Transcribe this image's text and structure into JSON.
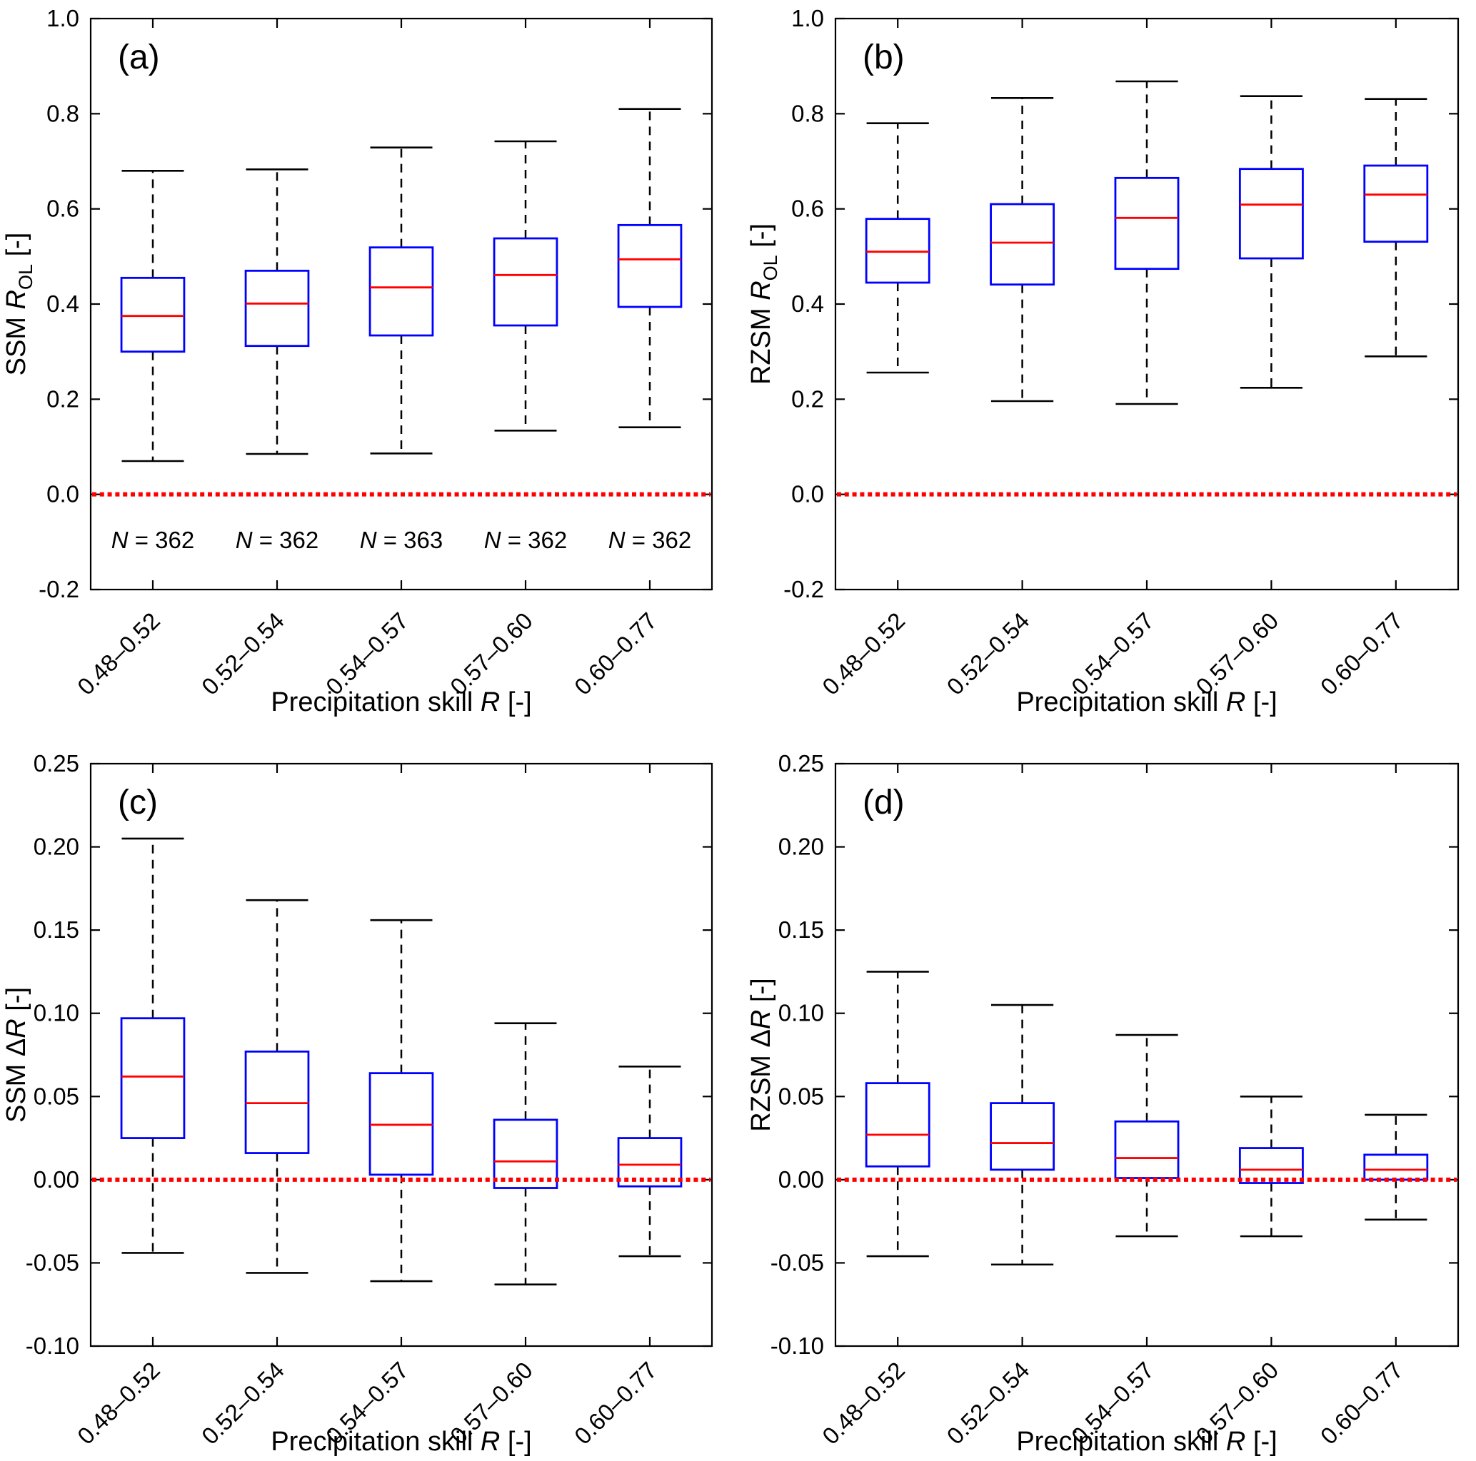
{
  "figure": {
    "background": "#ffffff",
    "colors": {
      "box_stroke": "#0000ff",
      "median_line": "#ff0000",
      "whisker": "#000000",
      "whisker_cap": "#000000",
      "zero_reference_line": "#ff0000",
      "axis": "#000000",
      "text": "#000000"
    }
  },
  "chart_data": [
    {
      "id": "a",
      "type": "boxplot",
      "panel_label": "(a)",
      "ylabel": "SSM R_OL [-]",
      "xlabel": "Precipitation skill R [-]",
      "ylabel_parts": [
        {
          "t": "SSM "
        },
        {
          "t": "R",
          "style": "italic"
        },
        {
          "t": "OL",
          "style": "sub"
        },
        {
          "t": " [-]"
        }
      ],
      "xlabel_parts": [
        {
          "t": "Precipitation skill "
        },
        {
          "t": "R",
          "style": "italic"
        },
        {
          "t": " [-]"
        }
      ],
      "categories": [
        "0.48–0.52",
        "0.52–0.54",
        "0.54–0.57",
        "0.57–0.60",
        "0.60–0.77"
      ],
      "ylim": [
        -0.2,
        1.0
      ],
      "ytick_values": [
        1.0,
        0.8,
        0.6,
        0.4,
        0.2,
        0.0,
        -0.2
      ],
      "ytick_labels": [
        "1.0",
        "0.8",
        "0.6",
        "0.4",
        "0.2",
        "0.0",
        "-0.2"
      ],
      "grid": false,
      "legend": null,
      "zero_line_y": 0.0,
      "boxes": [
        {
          "whisker_low": 0.07,
          "q1": 0.3,
          "median": 0.375,
          "q3": 0.455,
          "whisker_high": 0.68,
          "n": 362
        },
        {
          "whisker_low": 0.085,
          "q1": 0.312,
          "median": 0.401,
          "q3": 0.47,
          "whisker_high": 0.683,
          "n": 362
        },
        {
          "whisker_low": 0.086,
          "q1": 0.334,
          "median": 0.435,
          "q3": 0.519,
          "whisker_high": 0.729,
          "n": 363
        },
        {
          "whisker_low": 0.134,
          "q1": 0.355,
          "median": 0.461,
          "q3": 0.538,
          "whisker_high": 0.742,
          "n": 362
        },
        {
          "whisker_low": 0.141,
          "q1": 0.394,
          "median": 0.494,
          "q3": 0.566,
          "whisker_high": 0.81,
          "n": 362
        }
      ],
      "sample_annotations": {
        "y": -0.095,
        "items": [
          [
            {
              "t": "N",
              "style": "italic"
            },
            {
              "t": " = 362"
            }
          ],
          [
            {
              "t": "N",
              "style": "italic"
            },
            {
              "t": " = 362"
            }
          ],
          [
            {
              "t": "N",
              "style": "italic"
            },
            {
              "t": " = 363"
            }
          ],
          [
            {
              "t": "N",
              "style": "italic"
            },
            {
              "t": " = 362"
            }
          ],
          [
            {
              "t": "N",
              "style": "italic"
            },
            {
              "t": " = 362"
            }
          ]
        ]
      }
    },
    {
      "id": "b",
      "type": "boxplot",
      "panel_label": "(b)",
      "ylabel": "RZSM R_OL [-]",
      "xlabel": "Precipitation skill R [-]",
      "ylabel_parts": [
        {
          "t": "RZSM "
        },
        {
          "t": "R",
          "style": "italic"
        },
        {
          "t": "OL",
          "style": "sub"
        },
        {
          "t": " [-]"
        }
      ],
      "xlabel_parts": [
        {
          "t": "Precipitation skill "
        },
        {
          "t": "R",
          "style": "italic"
        },
        {
          "t": " [-]"
        }
      ],
      "categories": [
        "0.48–0.52",
        "0.52–0.54",
        "0.54–0.57",
        "0.57–0.60",
        "0.60–0.77"
      ],
      "ylim": [
        -0.2,
        1.0
      ],
      "ytick_values": [
        1.0,
        0.8,
        0.6,
        0.4,
        0.2,
        0.0,
        -0.2
      ],
      "ytick_labels": [
        "1.0",
        "0.8",
        "0.6",
        "0.4",
        "0.2",
        "0.0",
        "-0.2"
      ],
      "grid": false,
      "legend": null,
      "zero_line_y": 0.0,
      "boxes": [
        {
          "whisker_low": 0.256,
          "q1": 0.445,
          "median": 0.51,
          "q3": 0.579,
          "whisker_high": 0.78
        },
        {
          "whisker_low": 0.196,
          "q1": 0.441,
          "median": 0.529,
          "q3": 0.61,
          "whisker_high": 0.833
        },
        {
          "whisker_low": 0.19,
          "q1": 0.474,
          "median": 0.581,
          "q3": 0.665,
          "whisker_high": 0.868
        },
        {
          "whisker_low": 0.224,
          "q1": 0.496,
          "median": 0.609,
          "q3": 0.684,
          "whisker_high": 0.837
        },
        {
          "whisker_low": 0.29,
          "q1": 0.531,
          "median": 0.63,
          "q3": 0.691,
          "whisker_high": 0.831
        }
      ],
      "sample_annotations": null
    },
    {
      "id": "c",
      "type": "boxplot",
      "panel_label": "(c)",
      "ylabel": "SSM ΔR [-]",
      "xlabel": "Precipitation skill R [-]",
      "ylabel_parts": [
        {
          "t": "SSM Δ"
        },
        {
          "t": "R",
          "style": "italic"
        },
        {
          "t": " [-]"
        }
      ],
      "xlabel_parts": [
        {
          "t": "Precipitation skill "
        },
        {
          "t": "R",
          "style": "italic"
        },
        {
          "t": " [-]"
        }
      ],
      "categories": [
        "0.48–0.52",
        "0.52–0.54",
        "0.54–0.57",
        "0.57–0.60",
        "0.60–0.77"
      ],
      "ylim": [
        -0.1,
        0.25
      ],
      "ytick_values": [
        0.25,
        0.2,
        0.15,
        0.1,
        0.05,
        0.0,
        -0.05,
        -0.1
      ],
      "ytick_labels": [
        "0.25",
        "0.20",
        "0.15",
        "0.10",
        "0.05",
        "0.00",
        "-0.05",
        "-0.10"
      ],
      "grid": false,
      "legend": null,
      "zero_line_y": 0.0,
      "boxes": [
        {
          "whisker_low": -0.044,
          "q1": 0.025,
          "median": 0.062,
          "q3": 0.097,
          "whisker_high": 0.205
        },
        {
          "whisker_low": -0.056,
          "q1": 0.016,
          "median": 0.046,
          "q3": 0.077,
          "whisker_high": 0.168
        },
        {
          "whisker_low": -0.061,
          "q1": 0.003,
          "median": 0.033,
          "q3": 0.064,
          "whisker_high": 0.156
        },
        {
          "whisker_low": -0.063,
          "q1": -0.005,
          "median": 0.011,
          "q3": 0.036,
          "whisker_high": 0.094
        },
        {
          "whisker_low": -0.046,
          "q1": -0.004,
          "median": 0.009,
          "q3": 0.025,
          "whisker_high": 0.068
        }
      ],
      "sample_annotations": null
    },
    {
      "id": "d",
      "type": "boxplot",
      "panel_label": "(d)",
      "ylabel": "RZSM ΔR [-]",
      "xlabel": "Precipitation skill R [-]",
      "ylabel_parts": [
        {
          "t": "RZSM Δ"
        },
        {
          "t": "R",
          "style": "italic"
        },
        {
          "t": " [-]"
        }
      ],
      "xlabel_parts": [
        {
          "t": "Precipitation skill "
        },
        {
          "t": "R",
          "style": "italic"
        },
        {
          "t": " [-]"
        }
      ],
      "categories": [
        "0.48–0.52",
        "0.52–0.54",
        "0.54–0.57",
        "0.57–0.60",
        "0.60–0.77"
      ],
      "ylim": [
        -0.1,
        0.25
      ],
      "ytick_values": [
        0.25,
        0.2,
        0.15,
        0.1,
        0.05,
        0.0,
        -0.05,
        -0.1
      ],
      "ytick_labels": [
        "0.25",
        "0.20",
        "0.15",
        "0.10",
        "0.05",
        "0.00",
        "-0.05",
        "-0.10"
      ],
      "grid": false,
      "legend": null,
      "zero_line_y": 0.0,
      "boxes": [
        {
          "whisker_low": -0.046,
          "q1": 0.008,
          "median": 0.027,
          "q3": 0.058,
          "whisker_high": 0.125
        },
        {
          "whisker_low": -0.051,
          "q1": 0.006,
          "median": 0.022,
          "q3": 0.046,
          "whisker_high": 0.105
        },
        {
          "whisker_low": -0.034,
          "q1": 0.001,
          "median": 0.013,
          "q3": 0.035,
          "whisker_high": 0.087
        },
        {
          "whisker_low": -0.034,
          "q1": -0.002,
          "median": 0.006,
          "q3": 0.019,
          "whisker_high": 0.05
        },
        {
          "whisker_low": -0.024,
          "q1": 0.0,
          "median": 0.006,
          "q3": 0.015,
          "whisker_high": 0.039
        }
      ],
      "sample_annotations": null
    }
  ]
}
